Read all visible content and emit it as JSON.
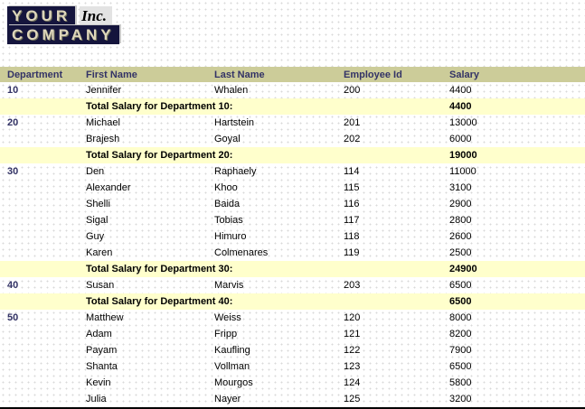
{
  "logo": {
    "line1": "YOUR",
    "line2": "COMPANY",
    "suffix": "Inc."
  },
  "colors": {
    "header_bg": "#cccc99",
    "header_text": "#333366",
    "department_text": "#333366",
    "total_row_bg": "#ffffcc",
    "logo_block_bg": "#15153d",
    "logo_text": "#ded6bb"
  },
  "table": {
    "headers": [
      "Department",
      "First Name",
      "Last Name",
      "Employee Id",
      "Salary"
    ],
    "groups": [
      {
        "department": "10",
        "rows": [
          {
            "first_name": "Jennifer",
            "last_name": "Whalen",
            "employee_id": "200",
            "salary": "4400"
          }
        ],
        "total_label": "Total Salary for Department 10:",
        "total_salary": "4400"
      },
      {
        "department": "20",
        "rows": [
          {
            "first_name": "Michael",
            "last_name": "Hartstein",
            "employee_id": "201",
            "salary": "13000"
          },
          {
            "first_name": "Brajesh",
            "last_name": "Goyal",
            "employee_id": "202",
            "salary": "6000"
          }
        ],
        "total_label": "Total Salary for Department 20:",
        "total_salary": "19000"
      },
      {
        "department": "30",
        "rows": [
          {
            "first_name": "Den",
            "last_name": "Raphaely",
            "employee_id": "114",
            "salary": "11000"
          },
          {
            "first_name": "Alexander",
            "last_name": "Khoo",
            "employee_id": "115",
            "salary": "3100"
          },
          {
            "first_name": "Shelli",
            "last_name": "Baida",
            "employee_id": "116",
            "salary": "2900"
          },
          {
            "first_name": "Sigal",
            "last_name": "Tobias",
            "employee_id": "117",
            "salary": "2800"
          },
          {
            "first_name": "Guy",
            "last_name": "Himuro",
            "employee_id": "118",
            "salary": "2600"
          },
          {
            "first_name": "Karen",
            "last_name": "Colmenares",
            "employee_id": "119",
            "salary": "2500"
          }
        ],
        "total_label": "Total Salary for Department 30:",
        "total_salary": "24900"
      },
      {
        "department": "40",
        "rows": [
          {
            "first_name": "Susan",
            "last_name": "Marvis",
            "employee_id": "203",
            "salary": "6500"
          }
        ],
        "total_label": "Total Salary for Department 40:",
        "total_salary": "6500"
      },
      {
        "department": "50",
        "rows": [
          {
            "first_name": "Matthew",
            "last_name": "Weiss",
            "employee_id": "120",
            "salary": "8000"
          },
          {
            "first_name": "Adam",
            "last_name": "Fripp",
            "employee_id": "121",
            "salary": "8200"
          },
          {
            "first_name": "Payam",
            "last_name": "Kaufling",
            "employee_id": "122",
            "salary": "7900"
          },
          {
            "first_name": "Shanta",
            "last_name": "Vollman",
            "employee_id": "123",
            "salary": "6500"
          },
          {
            "first_name": "Kevin",
            "last_name": "Mourgos",
            "employee_id": "124",
            "salary": "5800"
          },
          {
            "first_name": "Julia",
            "last_name": "Nayer",
            "employee_id": "125",
            "salary": "3200"
          }
        ]
      }
    ]
  }
}
